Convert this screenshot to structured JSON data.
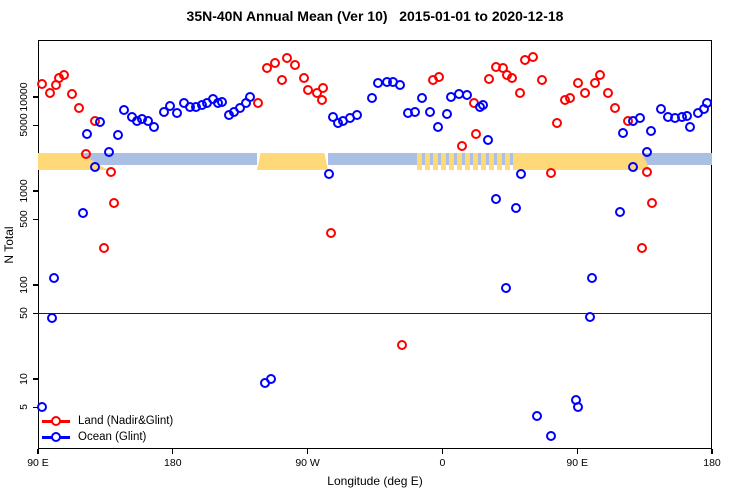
{
  "title": "35N-40N Annual Mean (Ver 10)   2015-01-01 to 2020-12-18",
  "legend": {
    "land_label": "Land (Nadir&Glint)",
    "ocean_label": "Ocean (Glint)"
  },
  "chart_data": {
    "type": "scatter",
    "title": "35N-40N Annual Mean (Ver 10)   2015-01-01 to 2020-12-18",
    "xlabel": "Longitude (deg E)",
    "ylabel": "N Total",
    "y_scale": "log10",
    "ylim": [
      1.8,
      40000
    ],
    "grid": false,
    "legend_position": "bottom-left-inside",
    "x_axis": {
      "note": "longitude wraps eastward over 450 deg: 90E to 180 to 90W to 0 to 90E to 180",
      "span_deg": 450,
      "tick_deg": [
        0,
        90,
        180,
        270,
        360,
        450
      ],
      "tick_labels": [
        "90 E",
        "180",
        "90 W",
        "0",
        "90 E",
        "180"
      ]
    },
    "y_ticks": [
      5,
      10,
      50,
      100,
      500,
      1000,
      5000,
      10000
    ],
    "reference_hline_value": 50,
    "land_ocean_strip": {
      "value_top": 2540,
      "land_value_bottom": 1670,
      "ocean_value_bottom": 1870,
      "land_color": "#FFD878",
      "ocean_color": "#A9BFE3",
      "ocean_segments_deg": [
        [
          28,
          146.2
        ],
        [
          193.6,
          317.1
        ],
        [
          400,
          450
        ]
      ],
      "land_segments_deg": [
        {
          "from": 0,
          "to": 28,
          "shape": "rect"
        },
        {
          "from": 28,
          "to": 46.7,
          "shape": "taper-right"
        },
        {
          "from": 146.2,
          "to": 193.6,
          "shape": "trapezoid"
        },
        {
          "from": 317.1,
          "to": 403.3,
          "shape": "rect"
        },
        {
          "from": 403.3,
          "to": 408.6,
          "shape": "taper-right"
        }
      ],
      "mixed_segment_deg": [
        253,
        317.1
      ]
    },
    "series": [
      {
        "name": "Land (Nadir&Glint)",
        "color": "#FF0000",
        "points": [
          [
            2.9,
            13600
          ],
          [
            8.0,
            10900
          ],
          [
            11.8,
            13400
          ],
          [
            14.0,
            16000
          ],
          [
            17.6,
            17100
          ],
          [
            22.5,
            10700
          ],
          [
            27.4,
            7700
          ],
          [
            38.1,
            5550
          ],
          [
            31.9,
            2500
          ],
          [
            48.7,
            1600
          ],
          [
            50.9,
            740
          ],
          [
            44.1,
            250
          ],
          [
            147.1,
            8600
          ],
          [
            152.7,
            20200
          ],
          [
            158.2,
            22800
          ],
          [
            166.1,
            25800
          ],
          [
            171.6,
            22000
          ],
          [
            162.7,
            15200
          ],
          [
            177.8,
            15800
          ],
          [
            180.5,
            11900
          ],
          [
            186.1,
            10900
          ],
          [
            190.5,
            12400
          ],
          [
            189.4,
            9300
          ],
          [
            195.6,
            360
          ],
          [
            242.9,
            23
          ],
          [
            264.0,
            15200
          ],
          [
            267.8,
            16200
          ],
          [
            291.1,
            8600
          ],
          [
            282.9,
            3000
          ],
          [
            292.5,
            4000
          ],
          [
            301.4,
            15400
          ],
          [
            305.8,
            21000
          ],
          [
            310.7,
            20200
          ],
          [
            313.2,
            17100
          ],
          [
            316.3,
            15800
          ],
          [
            325.2,
            24800
          ],
          [
            330.7,
            26800
          ],
          [
            336.3,
            15200
          ],
          [
            321.9,
            10900
          ],
          [
            342.3,
            1560
          ],
          [
            346.3,
            5300
          ],
          [
            351.9,
            9300
          ],
          [
            355.2,
            9700
          ],
          [
            360.8,
            14000
          ],
          [
            365.2,
            10900
          ],
          [
            371.9,
            14000
          ],
          [
            375.2,
            17100
          ],
          [
            380.8,
            10900
          ],
          [
            385.3,
            7600
          ],
          [
            394.2,
            5500
          ],
          [
            406.9,
            1600
          ],
          [
            409.8,
            740
          ],
          [
            403.1,
            250
          ]
        ]
      },
      {
        "name": "Ocean (Glint)",
        "color": "#0000FF",
        "points": [
          [
            41.4,
            5400
          ],
          [
            32.5,
            4000
          ],
          [
            47.4,
            2600
          ],
          [
            38.1,
            1800
          ],
          [
            53.2,
            3900
          ],
          [
            57.6,
            7300
          ],
          [
            62.6,
            6200
          ],
          [
            65.9,
            5600
          ],
          [
            69.6,
            5800
          ],
          [
            73.2,
            5500
          ],
          [
            77.7,
            4800
          ],
          [
            84.3,
            7000
          ],
          [
            88.1,
            8100
          ],
          [
            92.6,
            6700
          ],
          [
            97.7,
            8700
          ],
          [
            101.5,
            7900
          ],
          [
            105.3,
            7900
          ],
          [
            109.3,
            8200
          ],
          [
            112.6,
            8700
          ],
          [
            117.1,
            9500
          ],
          [
            120.0,
            8600
          ],
          [
            123.1,
            8900
          ],
          [
            127.5,
            6400
          ],
          [
            131.1,
            7000
          ],
          [
            134.9,
            7600
          ],
          [
            138.7,
            8600
          ],
          [
            141.6,
            10100
          ],
          [
            29.8,
            590
          ],
          [
            10.9,
            120
          ],
          [
            9.1,
            45
          ],
          [
            2.5,
            5
          ],
          [
            151.6,
            9
          ],
          [
            155.6,
            10
          ],
          [
            194.3,
            1500
          ],
          [
            197.2,
            6200
          ],
          [
            200.5,
            5300
          ],
          [
            203.9,
            5500
          ],
          [
            208.3,
            6000
          ],
          [
            212.8,
            6400
          ],
          [
            222.8,
            9700
          ],
          [
            227.2,
            14000
          ],
          [
            232.8,
            14600
          ],
          [
            237.2,
            14600
          ],
          [
            241.7,
            13400
          ],
          [
            247.3,
            6700
          ],
          [
            251.7,
            7000
          ],
          [
            256.2,
            9700
          ],
          [
            261.7,
            6900
          ],
          [
            267.3,
            4800
          ],
          [
            273.1,
            6600
          ],
          [
            275.8,
            10100
          ],
          [
            281.3,
            10700
          ],
          [
            286.2,
            10500
          ],
          [
            295.1,
            7900
          ],
          [
            297.3,
            8200
          ],
          [
            300.7,
            3500
          ],
          [
            305.6,
            820
          ],
          [
            319.2,
            660
          ],
          [
            322.3,
            1500
          ],
          [
            312.5,
            93
          ],
          [
            359.2,
            6
          ],
          [
            360.3,
            5
          ],
          [
            333.4,
            4
          ],
          [
            342.3,
            2.5
          ],
          [
            368.6,
            46
          ],
          [
            369.7,
            120
          ],
          [
            388.6,
            600
          ],
          [
            390.8,
            4100
          ],
          [
            397.1,
            1800
          ],
          [
            397.5,
            5500
          ],
          [
            406.4,
            2600
          ],
          [
            401.9,
            6000
          ],
          [
            409.1,
            4300
          ],
          [
            415.8,
            7400
          ],
          [
            420.9,
            6200
          ],
          [
            425.4,
            6000
          ],
          [
            429.8,
            6200
          ],
          [
            433.2,
            6300
          ],
          [
            435.4,
            4800
          ],
          [
            440.9,
            6800
          ],
          [
            444.7,
            7400
          ],
          [
            446.5,
            8600
          ]
        ]
      }
    ]
  }
}
